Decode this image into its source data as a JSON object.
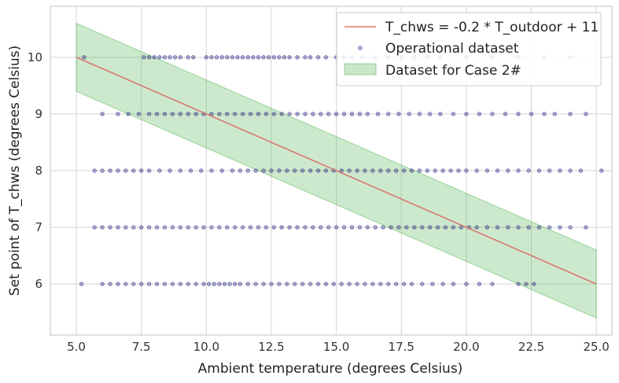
{
  "chart_data": {
    "type": "scatter",
    "title": "",
    "xlabel": "Ambient temperature (degrees Celsius)",
    "ylabel": "Set point of T_chws (degrees Celsius)",
    "xlim": [
      4.0,
      25.6
    ],
    "ylim": [
      5.1,
      10.9
    ],
    "xticks": [
      5.0,
      7.5,
      10.0,
      12.5,
      15.0,
      17.5,
      20.0,
      22.5,
      25.0
    ],
    "xtick_labels": [
      "5.0",
      "7.5",
      "10.0",
      "12.5",
      "15.0",
      "17.5",
      "20.0",
      "22.5",
      "25.0"
    ],
    "yticks": [
      6,
      7,
      8,
      9,
      10
    ],
    "ytick_labels": [
      "6",
      "7",
      "8",
      "9",
      "10"
    ],
    "grid": true,
    "legend_position": "top-right",
    "line": {
      "name": "T_chws = -0.2 * T_outdoor + 11",
      "color": "#d9786f",
      "x": [
        5.0,
        25.0
      ],
      "y": [
        10.0,
        6.0
      ]
    },
    "band": {
      "name": "Dataset for Case 2#",
      "color": "#4daf4a",
      "x": [
        5.0,
        25.0
      ],
      "upper": [
        10.6,
        6.6
      ],
      "lower": [
        9.4,
        5.4
      ]
    },
    "scatter": {
      "name": "Operational dataset",
      "color": "#1a1a80",
      "points": [
        {
          "y": 10,
          "x": [
            5.3,
            7.6,
            7.8,
            8.0,
            8.2,
            8.4,
            8.6,
            8.8,
            9.0,
            9.3,
            9.5,
            10.0,
            10.2,
            10.4,
            10.6,
            10.8,
            11.0,
            11.2,
            11.4,
            11.6,
            11.8,
            12.0,
            12.2,
            12.4,
            12.6,
            12.8,
            13.0,
            13.2,
            13.5,
            13.8,
            14.0,
            14.3,
            14.6,
            15.0,
            15.3,
            15.6,
            16.0,
            16.5,
            17.0,
            17.5,
            18.0,
            18.5,
            19.0,
            20.0,
            21.0,
            22.0,
            23.0,
            24.0
          ]
        },
        {
          "y": 9,
          "x": [
            6.0,
            6.6,
            7.0,
            7.4,
            7.8,
            8.1,
            8.4,
            8.7,
            9.0,
            9.3,
            9.6,
            9.9,
            10.2,
            10.5,
            10.8,
            11.1,
            11.4,
            11.7,
            12.0,
            12.3,
            12.6,
            12.9,
            13.2,
            13.5,
            13.8,
            14.1,
            14.4,
            14.7,
            15.0,
            15.3,
            15.6,
            15.9,
            16.2,
            16.6,
            17.0,
            17.4,
            17.8,
            18.2,
            18.6,
            19.0,
            19.5,
            20.0,
            20.5,
            21.0,
            21.5,
            22.0,
            22.5,
            23.0,
            23.4,
            24.0,
            24.6
          ]
        },
        {
          "y": 8,
          "x": [
            5.7,
            6.0,
            6.3,
            6.6,
            6.9,
            7.2,
            7.5,
            7.8,
            8.2,
            8.6,
            9.0,
            9.4,
            9.8,
            10.2,
            10.6,
            11.0,
            11.3,
            11.6,
            11.9,
            12.2,
            12.5,
            12.8,
            13.1,
            13.4,
            13.7,
            14.0,
            14.3,
            14.6,
            14.9,
            15.2,
            15.5,
            15.8,
            16.1,
            16.4,
            16.7,
            17.0,
            17.3,
            17.6,
            17.9,
            18.2,
            18.5,
            18.8,
            19.1,
            19.4,
            19.7,
            20.0,
            20.4,
            20.8,
            21.2,
            21.6,
            22.0,
            22.4,
            22.8,
            23.2,
            23.6,
            24.0,
            24.4,
            25.2
          ]
        },
        {
          "y": 7,
          "x": [
            5.7,
            6.0,
            6.3,
            6.6,
            6.9,
            7.2,
            7.5,
            7.8,
            8.1,
            8.4,
            8.7,
            9.0,
            9.3,
            9.6,
            9.9,
            10.2,
            10.5,
            10.8,
            11.1,
            11.4,
            11.7,
            12.0,
            12.3,
            12.6,
            12.9,
            13.2,
            13.5,
            13.8,
            14.1,
            14.4,
            14.7,
            15.0,
            15.3,
            15.6,
            15.9,
            16.2,
            16.5,
            16.8,
            17.1,
            17.4,
            17.7,
            18.0,
            18.3,
            18.6,
            18.9,
            19.2,
            19.5,
            19.8,
            20.1,
            20.4,
            20.8,
            21.2,
            21.6,
            22.0,
            22.4,
            22.8,
            23.2,
            23.6,
            24.0,
            24.6
          ]
        },
        {
          "y": 6,
          "x": [
            5.2,
            6.0,
            6.3,
            6.6,
            6.9,
            7.2,
            7.5,
            7.8,
            8.1,
            8.4,
            8.7,
            9.0,
            9.3,
            9.6,
            9.9,
            10.1,
            10.3,
            10.5,
            10.7,
            10.9,
            11.1,
            11.3,
            11.6,
            11.9,
            12.2,
            12.5,
            12.8,
            13.1,
            13.4,
            13.7,
            14.0,
            14.3,
            14.6,
            14.9,
            15.2,
            15.5,
            15.8,
            16.1,
            16.4,
            16.7,
            17.0,
            17.3,
            17.6,
            17.9,
            18.3,
            18.7,
            19.1,
            19.5,
            20.0,
            20.5,
            21.0,
            22.0,
            22.3,
            22.6
          ]
        }
      ]
    }
  }
}
